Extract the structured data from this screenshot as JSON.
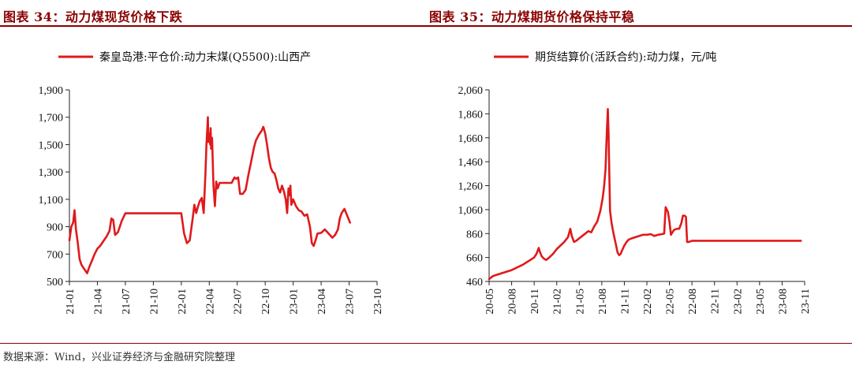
{
  "colors": {
    "line": "#e0191b",
    "accent": "#8a0000"
  },
  "header": {
    "left_title": "图表 34：动力煤现货价格下跌",
    "right_title": "图表 35：动力煤期货价格保持平稳"
  },
  "footer": {
    "source": "数据来源：Wind，兴业证券经济与金融研究院整理"
  },
  "chart_data": [
    {
      "type": "line",
      "title": "",
      "series": [
        {
          "name": "秦皇岛港:平仓价:动力末煤(Q5500):山西产",
          "points": [
            [
              0.0,
              800
            ],
            [
              0.2,
              900
            ],
            [
              0.4,
              930
            ],
            [
              0.55,
              1020
            ],
            [
              0.7,
              880
            ],
            [
              0.9,
              780
            ],
            [
              1.1,
              660
            ],
            [
              1.3,
              620
            ],
            [
              1.6,
              590
            ],
            [
              1.9,
              560
            ],
            [
              2.1,
              600
            ],
            [
              2.4,
              650
            ],
            [
              2.7,
              700
            ],
            [
              3.0,
              740
            ],
            [
              3.3,
              760
            ],
            [
              3.7,
              800
            ],
            [
              4.0,
              830
            ],
            [
              4.3,
              870
            ],
            [
              4.5,
              960
            ],
            [
              4.7,
              950
            ],
            [
              4.9,
              840
            ],
            [
              5.2,
              860
            ],
            [
              5.6,
              940
            ],
            [
              6.0,
              998
            ],
            [
              8.0,
              998
            ],
            [
              10.0,
              998
            ],
            [
              12.0,
              998
            ],
            [
              12.3,
              850
            ],
            [
              12.6,
              780
            ],
            [
              12.9,
              800
            ],
            [
              13.2,
              950
            ],
            [
              13.4,
              1060
            ],
            [
              13.6,
              1000
            ],
            [
              13.8,
              1050
            ],
            [
              14.0,
              1090
            ],
            [
              14.2,
              1110
            ],
            [
              14.4,
              1000
            ],
            [
              14.6,
              1300
            ],
            [
              14.7,
              1500
            ],
            [
              14.8,
              1630
            ],
            [
              14.85,
              1700
            ],
            [
              14.9,
              1520
            ],
            [
              15.0,
              1580
            ],
            [
              15.1,
              1500
            ],
            [
              15.15,
              1620
            ],
            [
              15.2,
              1470
            ],
            [
              15.3,
              1550
            ],
            [
              15.45,
              1200
            ],
            [
              15.6,
              1050
            ],
            [
              15.75,
              1230
            ],
            [
              15.9,
              1180
            ],
            [
              16.1,
              1220
            ],
            [
              16.5,
              1220
            ],
            [
              17.0,
              1220
            ],
            [
              17.4,
              1220
            ],
            [
              17.7,
              1260
            ],
            [
              17.9,
              1250
            ],
            [
              18.1,
              1260
            ],
            [
              18.3,
              1140
            ],
            [
              18.6,
              1140
            ],
            [
              18.9,
              1170
            ],
            [
              19.2,
              1280
            ],
            [
              19.5,
              1380
            ],
            [
              19.8,
              1480
            ],
            [
              20.0,
              1530
            ],
            [
              20.3,
              1570
            ],
            [
              20.6,
              1600
            ],
            [
              20.8,
              1630
            ],
            [
              21.0,
              1580
            ],
            [
              21.2,
              1500
            ],
            [
              21.4,
              1400
            ],
            [
              21.6,
              1330
            ],
            [
              21.8,
              1300
            ],
            [
              22.0,
              1290
            ],
            [
              22.2,
              1240
            ],
            [
              22.4,
              1180
            ],
            [
              22.6,
              1150
            ],
            [
              22.8,
              1200
            ],
            [
              23.0,
              1160
            ],
            [
              23.2,
              1100
            ],
            [
              23.35,
              1000
            ],
            [
              23.5,
              1180
            ],
            [
              23.6,
              1130
            ],
            [
              23.7,
              1200
            ],
            [
              23.8,
              1060
            ],
            [
              24.0,
              1100
            ],
            [
              24.3,
              1050
            ],
            [
              24.6,
              1020
            ],
            [
              24.9,
              1010
            ],
            [
              25.2,
              980
            ],
            [
              25.5,
              990
            ],
            [
              25.8,
              900
            ],
            [
              26.0,
              780
            ],
            [
              26.2,
              760
            ],
            [
              26.4,
              800
            ],
            [
              26.6,
              850
            ],
            [
              27.0,
              855
            ],
            [
              27.4,
              880
            ],
            [
              27.8,
              850
            ],
            [
              28.2,
              820
            ],
            [
              28.5,
              840
            ],
            [
              28.8,
              880
            ],
            [
              29.0,
              960
            ],
            [
              29.2,
              1000
            ],
            [
              29.5,
              1030
            ],
            [
              29.8,
              980
            ],
            [
              30.1,
              930
            ]
          ]
        }
      ],
      "x_ticks": [
        "21-01",
        "21-04",
        "21-07",
        "21-10",
        "22-01",
        "22-04",
        "22-07",
        "22-10",
        "23-01",
        "23-04",
        "23-07",
        "23-10"
      ],
      "x_tick_positions": [
        0,
        3,
        6,
        9,
        12,
        15,
        18,
        21,
        24,
        27,
        30,
        33
      ],
      "xlim": [
        0,
        33
      ],
      "y_ticks": [
        "500",
        "700",
        "900",
        "1,100",
        "1,300",
        "1,500",
        "1,700",
        "1,900"
      ],
      "y_tick_values": [
        500,
        700,
        900,
        1100,
        1300,
        1500,
        1700,
        1900
      ],
      "ylim": [
        500,
        1900
      ],
      "legend": "top-center",
      "grid": false
    },
    {
      "type": "line",
      "title": "",
      "series": [
        {
          "name": "期货结算价(活跃合约):动力煤，元/吨",
          "points": [
            [
              0.0,
              480
            ],
            [
              0.5,
              505
            ],
            [
              1.0,
              515
            ],
            [
              1.5,
              525
            ],
            [
              2.0,
              535
            ],
            [
              2.5,
              545
            ],
            [
              3.0,
              555
            ],
            [
              3.5,
              570
            ],
            [
              4.0,
              585
            ],
            [
              4.5,
              600
            ],
            [
              5.0,
              620
            ],
            [
              5.5,
              640
            ],
            [
              6.0,
              660
            ],
            [
              6.3,
              690
            ],
            [
              6.6,
              740
            ],
            [
              6.8,
              700
            ],
            [
              7.0,
              670
            ],
            [
              7.3,
              650
            ],
            [
              7.6,
              640
            ],
            [
              8.0,
              660
            ],
            [
              8.5,
              690
            ],
            [
              9.0,
              730
            ],
            [
              9.5,
              760
            ],
            [
              10.0,
              790
            ],
            [
              10.5,
              830
            ],
            [
              10.8,
              900
            ],
            [
              11.0,
              840
            ],
            [
              11.3,
              790
            ],
            [
              11.6,
              800
            ],
            [
              12.0,
              820
            ],
            [
              12.4,
              840
            ],
            [
              12.8,
              860
            ],
            [
              13.2,
              880
            ],
            [
              13.6,
              870
            ],
            [
              14.0,
              920
            ],
            [
              14.4,
              960
            ],
            [
              14.8,
              1050
            ],
            [
              15.1,
              1150
            ],
            [
              15.3,
              1250
            ],
            [
              15.5,
              1400
            ],
            [
              15.6,
              1600
            ],
            [
              15.7,
              1750
            ],
            [
              15.8,
              1900
            ],
            [
              15.9,
              1700
            ],
            [
              16.0,
              1350
            ],
            [
              16.1,
              1050
            ],
            [
              16.3,
              950
            ],
            [
              16.5,
              880
            ],
            [
              16.7,
              820
            ],
            [
              16.9,
              760
            ],
            [
              17.1,
              700
            ],
            [
              17.3,
              680
            ],
            [
              17.5,
              690
            ],
            [
              17.7,
              720
            ],
            [
              18.0,
              760
            ],
            [
              18.3,
              790
            ],
            [
              18.6,
              810
            ],
            [
              19.0,
              820
            ],
            [
              19.5,
              830
            ],
            [
              20.0,
              840
            ],
            [
              20.5,
              850
            ],
            [
              21.0,
              850
            ],
            [
              21.5,
              855
            ],
            [
              22.0,
              840
            ],
            [
              22.5,
              850
            ],
            [
              23.0,
              855
            ],
            [
              23.3,
              860
            ],
            [
              23.5,
              1080
            ],
            [
              23.8,
              1040
            ],
            [
              24.0,
              960
            ],
            [
              24.2,
              850
            ],
            [
              24.4,
              870
            ],
            [
              24.6,
              890
            ],
            [
              25.0,
              900
            ],
            [
              25.3,
              900
            ],
            [
              25.6,
              950
            ],
            [
              25.8,
              1010
            ],
            [
              26.0,
              1010
            ],
            [
              26.2,
              1000
            ],
            [
              26.35,
              790
            ],
            [
              26.6,
              790
            ],
            [
              27.0,
              800
            ],
            [
              28.0,
              800
            ],
            [
              29.0,
              800
            ],
            [
              30.0,
              800
            ],
            [
              31.0,
              800
            ],
            [
              32.0,
              800
            ],
            [
              33.0,
              800
            ],
            [
              34.0,
              800
            ],
            [
              35.0,
              800
            ],
            [
              36.0,
              800
            ],
            [
              37.0,
              800
            ],
            [
              38.0,
              800
            ],
            [
              39.0,
              800
            ],
            [
              40.0,
              800
            ],
            [
              41.0,
              800
            ],
            [
              41.5,
              800
            ]
          ]
        }
      ],
      "x_ticks": [
        "20-05",
        "20-08",
        "20-11",
        "21-02",
        "21-05",
        "21-08",
        "21-11",
        "22-02",
        "22-05",
        "22-08",
        "22-11",
        "23-02",
        "23-05",
        "23-08",
        "23-11"
      ],
      "x_tick_positions": [
        0,
        3,
        6,
        9,
        12,
        15,
        18,
        21,
        24,
        27,
        30,
        33,
        36,
        39,
        42
      ],
      "xlim": [
        0,
        42
      ],
      "y_ticks": [
        "460",
        "660",
        "860",
        "1,060",
        "1,260",
        "1,460",
        "1,660",
        "1,860",
        "2,060"
      ],
      "y_tick_values": [
        460,
        660,
        860,
        1060,
        1260,
        1460,
        1660,
        1860,
        2060
      ],
      "ylim": [
        460,
        2060
      ],
      "legend": "top-center",
      "grid": false
    }
  ]
}
